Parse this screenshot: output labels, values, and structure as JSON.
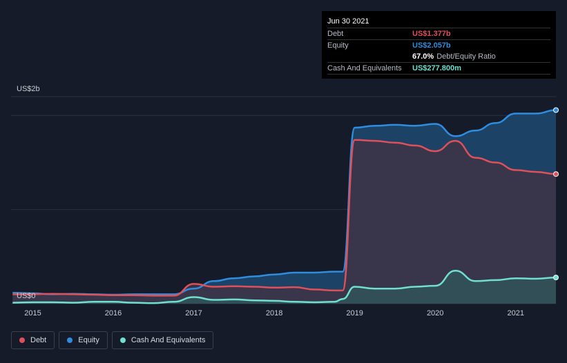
{
  "tooltip": {
    "date": "Jun 30 2021",
    "debt_label": "Debt",
    "debt_value": "US$1.377b",
    "equity_label": "Equity",
    "equity_value": "US$2.057b",
    "ratio_value": "67.0%",
    "ratio_label": "Debt/Equity Ratio",
    "cash_label": "Cash And Equivalents",
    "cash_value": "US$277.800m"
  },
  "legend": [
    {
      "label": "Debt",
      "color": "#e0505a"
    },
    {
      "label": "Equity",
      "color": "#2f8de0"
    },
    {
      "label": "Cash And Equivalents",
      "color": "#6fe0cf"
    }
  ],
  "chart_data": {
    "type": "area",
    "y_axis_labels": [
      "US$2b",
      "US$0"
    ],
    "x_tick_labels": [
      "2015",
      "2016",
      "2017",
      "2018",
      "2019",
      "2020",
      "2021"
    ],
    "ylim": [
      0,
      2.2
    ],
    "xlim": [
      2014.73,
      2021.5
    ],
    "colors": {
      "debt": "#e0505a",
      "equity": "#2f8de0",
      "cash": "#6fe0cf"
    },
    "series": [
      {
        "name": "Equity",
        "x": [
          2014.75,
          2015.0,
          2015.25,
          2015.5,
          2015.75,
          2016.0,
          2016.25,
          2016.5,
          2016.75,
          2017.0,
          2017.25,
          2017.5,
          2017.75,
          2018.0,
          2018.25,
          2018.5,
          2018.75,
          2018.85,
          2019.0,
          2019.25,
          2019.5,
          2019.75,
          2020.0,
          2020.25,
          2020.5,
          2020.75,
          2021.0,
          2021.25,
          2021.5
        ],
        "values": [
          0.115,
          0.11,
          0.1,
          0.105,
          0.1,
          0.095,
          0.1,
          0.1,
          0.1,
          0.16,
          0.24,
          0.27,
          0.29,
          0.31,
          0.33,
          0.33,
          0.34,
          0.34,
          1.87,
          1.89,
          1.9,
          1.89,
          1.91,
          1.78,
          1.84,
          1.92,
          2.02,
          2.02,
          2.057
        ]
      },
      {
        "name": "Debt",
        "x": [
          2014.75,
          2015.0,
          2015.25,
          2015.5,
          2015.75,
          2016.0,
          2016.25,
          2016.5,
          2016.75,
          2017.0,
          2017.25,
          2017.5,
          2017.75,
          2018.0,
          2018.25,
          2018.5,
          2018.75,
          2018.85,
          2019.0,
          2019.25,
          2019.5,
          2019.75,
          2020.0,
          2020.25,
          2020.5,
          2020.75,
          2021.0,
          2021.25,
          2021.5
        ],
        "values": [
          0.1,
          0.1,
          0.105,
          0.1,
          0.095,
          0.09,
          0.09,
          0.085,
          0.085,
          0.21,
          0.18,
          0.185,
          0.18,
          0.17,
          0.175,
          0.15,
          0.14,
          0.14,
          1.74,
          1.73,
          1.71,
          1.68,
          1.62,
          1.73,
          1.55,
          1.5,
          1.42,
          1.4,
          1.377
        ]
      },
      {
        "name": "Cash And Equivalents",
        "x": [
          2014.75,
          2015.0,
          2015.25,
          2015.5,
          2015.75,
          2016.0,
          2016.25,
          2016.5,
          2016.75,
          2017.0,
          2017.25,
          2017.5,
          2017.75,
          2018.0,
          2018.25,
          2018.5,
          2018.75,
          2018.85,
          2019.0,
          2019.25,
          2019.5,
          2019.75,
          2020.0,
          2020.25,
          2020.5,
          2020.75,
          2021.0,
          2021.25,
          2021.5
        ],
        "values": [
          0.01,
          0.015,
          0.015,
          0.01,
          0.02,
          0.02,
          0.01,
          0.005,
          0.02,
          0.07,
          0.04,
          0.045,
          0.035,
          0.03,
          0.02,
          0.015,
          0.02,
          0.05,
          0.18,
          0.16,
          0.16,
          0.18,
          0.19,
          0.35,
          0.24,
          0.25,
          0.27,
          0.265,
          0.2778
        ]
      }
    ]
  }
}
